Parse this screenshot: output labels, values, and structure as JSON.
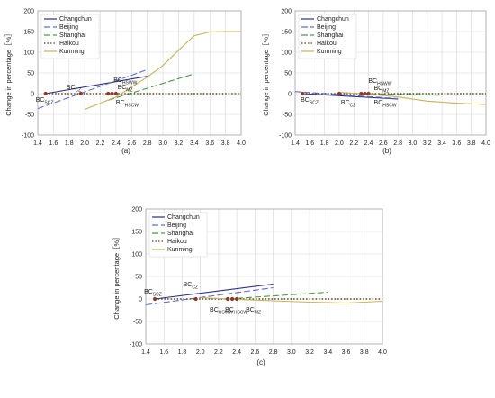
{
  "chart_data": [
    {
      "panel_label": "(a)",
      "type": "line",
      "ylabel": "Change in percentage［%］",
      "xlim": [
        1.4,
        4.0
      ],
      "ylim": [
        -100,
        200
      ],
      "xticks": [
        "1.4",
        "1.6",
        "1.8",
        "2.0",
        "2.2",
        "2.4",
        "2.6",
        "2.8",
        "3.0",
        "3.2",
        "3.4",
        "3.6",
        "3.8",
        "4.0"
      ],
      "yticks": [
        "-100",
        "-50",
        "0",
        "50",
        "100",
        "150",
        "200"
      ],
      "legend_position": "top-left",
      "series": [
        {
          "name": "Changchun",
          "color": "#2b2f7e",
          "dash": "solid",
          "x": [
            1.5,
            2.8
          ],
          "y": [
            0,
            42
          ]
        },
        {
          "name": "Beijing",
          "color": "#5b6fd4",
          "dash": "long",
          "x": [
            1.4,
            2.8
          ],
          "y": [
            -36,
            58
          ]
        },
        {
          "name": "Shanghai",
          "color": "#4c9a4c",
          "dash": "long",
          "x": [
            2.3,
            3.4
          ],
          "y": [
            -16,
            48
          ]
        },
        {
          "name": "Haikou",
          "color": "#5a4312",
          "dash": "dot",
          "x": [
            1.5,
            4.0
          ],
          "y": [
            0,
            0
          ]
        },
        {
          "name": "Kunming",
          "color": "#c8b25a",
          "dash": "solid",
          "x": [
            2.0,
            2.4,
            2.8,
            3.0,
            3.2,
            3.4,
            3.6,
            3.8,
            4.0
          ],
          "y": [
            -38,
            -8,
            40,
            68,
            105,
            140,
            149,
            150,
            150
          ]
        }
      ],
      "markers": [
        {
          "text": "BC",
          "sub": "SCZ",
          "x": 1.5,
          "y": 0
        },
        {
          "text": "BC",
          "sub": "CZ",
          "x": 1.95,
          "y": 0
        },
        {
          "text": "BC",
          "sub": "HSWW",
          "x": 2.3,
          "y": 0
        },
        {
          "text": "BC",
          "sub": "MZ",
          "x": 2.35,
          "y": 0
        },
        {
          "text": "BC",
          "sub": "HSCW",
          "x": 2.4,
          "y": 0
        }
      ]
    },
    {
      "panel_label": "(b)",
      "type": "line",
      "ylabel": "Change in percentage［%］",
      "xlim": [
        1.4,
        4.0
      ],
      "ylim": [
        -100,
        200
      ],
      "xticks": [
        "1.4",
        "1.6",
        "1.8",
        "2.0",
        "2.2",
        "2.4",
        "2.6",
        "2.8",
        "3.0",
        "3.2",
        "3.4",
        "3.6",
        "3.8",
        "4.0"
      ],
      "yticks": [
        "-100",
        "-50",
        "0",
        "50",
        "100",
        "150",
        "200"
      ],
      "legend_position": "top-left",
      "series": [
        {
          "name": "Changchun",
          "color": "#2b2f7e",
          "dash": "solid",
          "x": [
            1.5,
            2.8
          ],
          "y": [
            0,
            -13
          ]
        },
        {
          "name": "Beijing",
          "color": "#5b6fd4",
          "dash": "long",
          "x": [
            1.4,
            2.8
          ],
          "y": [
            5,
            -12
          ]
        },
        {
          "name": "Shanghai",
          "color": "#4c9a4c",
          "dash": "long",
          "x": [
            2.3,
            3.4
          ],
          "y": [
            0,
            -4
          ]
        },
        {
          "name": "Haikou",
          "color": "#5a4312",
          "dash": "dot",
          "x": [
            1.5,
            4.0
          ],
          "y": [
            0,
            0
          ]
        },
        {
          "name": "Kunming",
          "color": "#c8b25a",
          "dash": "solid",
          "x": [
            2.0,
            2.4,
            2.8,
            3.2,
            3.6,
            4.0
          ],
          "y": [
            3,
            -1,
            -8,
            -18,
            -23,
            -26
          ]
        }
      ],
      "markers": [
        {
          "text": "BC",
          "sub": "SCZ",
          "x": 1.5,
          "y": 0
        },
        {
          "text": "BC",
          "sub": "CZ",
          "x": 2.0,
          "y": 0
        },
        {
          "text": "BC",
          "sub": "HSWW",
          "x": 2.3,
          "y": 0
        },
        {
          "text": "BC",
          "sub": "MZ",
          "x": 2.35,
          "y": 0
        },
        {
          "text": "BC",
          "sub": "HSCW",
          "x": 2.4,
          "y": 0
        }
      ]
    },
    {
      "panel_label": "(c)",
      "type": "line",
      "ylabel": "Change in percentage［%］",
      "xlim": [
        1.4,
        4.0
      ],
      "ylim": [
        -100,
        200
      ],
      "xticks": [
        "1.4",
        "1.6",
        "1.8",
        "2.0",
        "2.2",
        "2.4",
        "2.6",
        "2.8",
        "3.0",
        "3.2",
        "3.4",
        "3.6",
        "3.8",
        "4.0"
      ],
      "yticks": [
        "-100",
        "-50",
        "0",
        "50",
        "100",
        "150",
        "200"
      ],
      "legend_position": "top-left",
      "series": [
        {
          "name": "Changchun",
          "color": "#2b2f7e",
          "dash": "solid",
          "x": [
            1.5,
            2.8
          ],
          "y": [
            0,
            33
          ]
        },
        {
          "name": "Beijing",
          "color": "#5b6fd4",
          "dash": "long",
          "x": [
            1.4,
            2.8
          ],
          "y": [
            -13,
            25
          ]
        },
        {
          "name": "Shanghai",
          "color": "#4c9a4c",
          "dash": "long",
          "x": [
            2.3,
            3.4
          ],
          "y": [
            0,
            15
          ]
        },
        {
          "name": "Haikou",
          "color": "#5a4312",
          "dash": "dot",
          "x": [
            1.5,
            4.0
          ],
          "y": [
            0,
            0
          ]
        },
        {
          "name": "Kunming",
          "color": "#c8b25a",
          "dash": "solid",
          "x": [
            2.0,
            2.4,
            2.8,
            3.2,
            3.6,
            4.0
          ],
          "y": [
            3,
            -1,
            -4,
            -7,
            -9,
            -5
          ]
        }
      ],
      "markers": [
        {
          "text": "BC",
          "sub": "SCZ",
          "x": 1.5,
          "y": 0
        },
        {
          "text": "BC",
          "sub": "CZ",
          "x": 1.95,
          "y": 0
        },
        {
          "text": "BC",
          "sub": "HSWW",
          "x": 2.3,
          "y": 0
        },
        {
          "text": "BC",
          "sub": "HSCW",
          "x": 2.35,
          "y": 0
        },
        {
          "text": "BC",
          "sub": "MZ",
          "x": 2.4,
          "y": 0
        }
      ]
    }
  ]
}
